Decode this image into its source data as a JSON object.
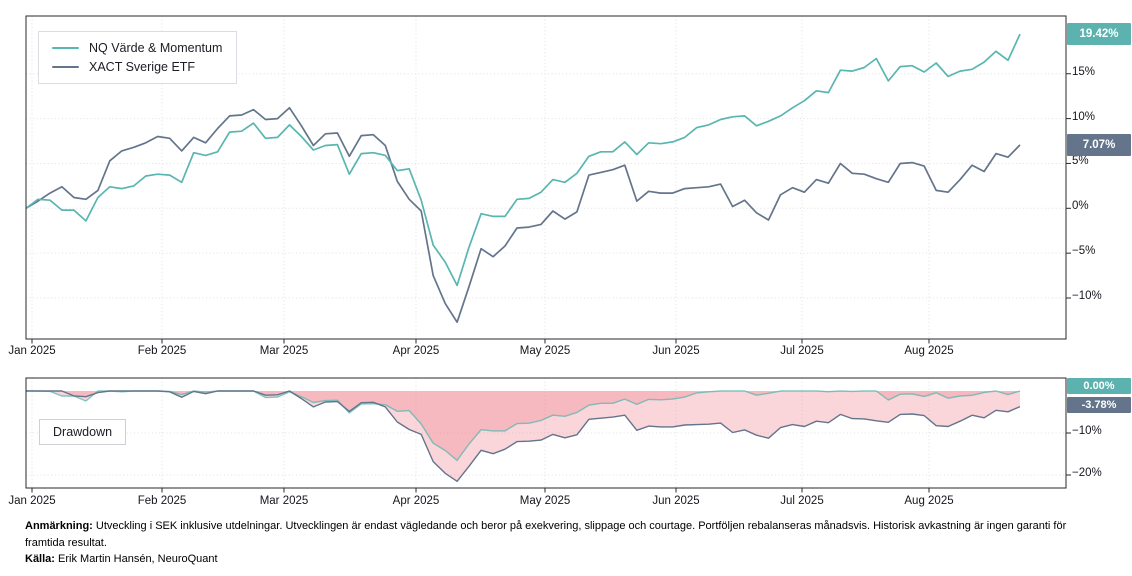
{
  "colors": {
    "teal": "#58b6b1",
    "slate": "#64748b",
    "teal_badge": "#5bb2ae",
    "slate_badge": "#64748b",
    "pink_fill": "rgba(240,128,140,0.33)",
    "grid": "#dfe0e6",
    "spine": "#2a2a2e",
    "tick_text": "#15161d"
  },
  "legend": {
    "items": [
      {
        "label": "NQ Värde & Momentum",
        "color_key": "teal"
      },
      {
        "label": "XACT Sverige ETF",
        "color_key": "slate"
      }
    ]
  },
  "months": [
    "Jan 2025",
    "Feb 2025",
    "Mar 2025",
    "Apr 2025",
    "May 2025",
    "Jun 2025",
    "Jul 2025",
    "Aug 2025"
  ],
  "performance_panel": {
    "y_ticks": [
      {
        "label": "15%",
        "value": 15
      },
      {
        "label": "10%",
        "value": 10
      },
      {
        "label": "5%",
        "value": 5
      },
      {
        "label": "0%",
        "value": 0
      },
      {
        "label": "−5%",
        "value": -5
      },
      {
        "label": "−10%",
        "value": -10
      }
    ],
    "end_badges": [
      {
        "label": "19.42%",
        "value": 19.42,
        "color_key": "teal_badge"
      },
      {
        "label": "7.07%",
        "value": 7.07,
        "color_key": "slate_badge"
      }
    ]
  },
  "drawdown_panel": {
    "panel_label": "Drawdown",
    "y_ticks": [
      {
        "label": "−10%",
        "value": -10
      },
      {
        "label": "−20%",
        "value": -20
      }
    ],
    "end_badges": [
      {
        "label": "0.00%",
        "value": 0.0,
        "color_key": "teal_badge"
      },
      {
        "label": "-3.78%",
        "value": -3.78,
        "color_key": "slate_badge"
      }
    ]
  },
  "footer": {
    "note_label": "Anmärkning:",
    "note": " Utveckling i SEK inklusive utdelningar. Utvecklingen är endast vägledande och beror på exekvering, slippage och courtage. Portföljen rebalanseras månadsvis. Historisk avkastning är ingen garanti för framtida resultat.",
    "source_label": "Källa:",
    "source": " Erik Martin Hansén, NeuroQuant"
  },
  "chart_data": [
    {
      "type": "line",
      "title": "",
      "xlabel": "",
      "ylabel": "",
      "unit": "percent return since start",
      "x_axis": {
        "start": "Jan 2025",
        "end": "late Aug 2025",
        "tick_labels": [
          "Jan 2025",
          "Feb 2025",
          "Mar 2025",
          "Apr 2025",
          "May 2025",
          "Jun 2025",
          "Jul 2025",
          "Aug 2025"
        ]
      },
      "ylim": [
        -14.5,
        21.5
      ],
      "y_ticks": [
        15,
        10,
        5,
        0,
        -5,
        -10
      ],
      "grid": true,
      "legend_position": "upper-left",
      "series": [
        {
          "name": "NQ Värde & Momentum",
          "color_key": "teal",
          "end_label": "19.42%",
          "values": [
            0.0,
            1.0,
            0.9,
            -0.2,
            -0.2,
            -1.4,
            1.2,
            2.4,
            2.2,
            2.5,
            3.6,
            3.8,
            3.7,
            2.9,
            6.2,
            5.9,
            6.3,
            8.5,
            8.6,
            9.5,
            7.8,
            7.9,
            9.3,
            8.0,
            6.5,
            7.0,
            7.1,
            3.8,
            6.1,
            6.2,
            5.9,
            4.2,
            4.4,
            0.9,
            -4.1,
            -6.0,
            -8.6,
            -4.3,
            -0.6,
            -0.9,
            -0.9,
            1.0,
            1.1,
            1.8,
            3.2,
            2.9,
            3.9,
            5.8,
            6.3,
            6.3,
            7.4,
            6.0,
            7.3,
            7.2,
            7.4,
            7.9,
            9.0,
            9.3,
            9.9,
            10.2,
            10.3,
            9.2,
            9.7,
            10.3,
            11.2,
            12.0,
            13.1,
            12.9,
            15.4,
            15.3,
            15.7,
            16.7,
            14.2,
            15.8,
            15.9,
            15.2,
            16.2,
            14.7,
            15.3,
            15.5,
            16.3,
            17.5,
            16.5,
            19.42
          ]
        },
        {
          "name": "XACT Sverige ETF",
          "color_key": "slate",
          "end_label": "7.07%",
          "values": [
            0.0,
            0.8,
            1.7,
            2.4,
            1.2,
            1.0,
            2.0,
            5.3,
            6.4,
            6.8,
            7.3,
            8.0,
            7.8,
            6.4,
            7.9,
            7.3,
            8.9,
            10.3,
            10.4,
            11.0,
            9.9,
            10.0,
            11.2,
            9.2,
            7.0,
            8.3,
            8.4,
            5.8,
            8.1,
            8.2,
            7.0,
            3.0,
            1.0,
            -0.3,
            -7.5,
            -10.6,
            -12.7,
            -8.7,
            -4.5,
            -5.4,
            -4.2,
            -2.2,
            -2.1,
            -1.8,
            -0.3,
            -1.2,
            -0.4,
            3.7,
            4.0,
            4.3,
            4.8,
            0.8,
            1.9,
            1.7,
            1.7,
            2.2,
            2.3,
            2.4,
            2.7,
            0.2,
            0.9,
            -0.5,
            -1.3,
            1.5,
            2.3,
            1.8,
            3.2,
            2.8,
            5.0,
            3.9,
            3.8,
            3.3,
            2.9,
            5.0,
            5.1,
            4.7,
            2.0,
            1.8,
            3.2,
            4.8,
            4.1,
            6.1,
            5.7,
            7.07
          ]
        }
      ]
    },
    {
      "type": "area",
      "title": "Drawdown",
      "unit": "percent drawdown from running peak",
      "ylim": [
        -23.5,
        3.1
      ],
      "y_ticks": [
        -10,
        -20
      ],
      "grid": true,
      "fill_style": "translucent pink below 0% for each series, overlapping regions darker",
      "series": [
        {
          "name": "NQ Värde & Momentum",
          "color_key": "teal",
          "derived_from": "running-peak drawdown of performance series 0",
          "end_value": 0.0,
          "min_value_approx": -16.5,
          "end_label": "0.00%"
        },
        {
          "name": "XACT Sverige ETF",
          "color_key": "slate",
          "derived_from": "running-peak drawdown of performance series 1",
          "end_value": -3.78,
          "min_value_approx": -21.9,
          "end_label": "-3.78%"
        }
      ]
    }
  ]
}
